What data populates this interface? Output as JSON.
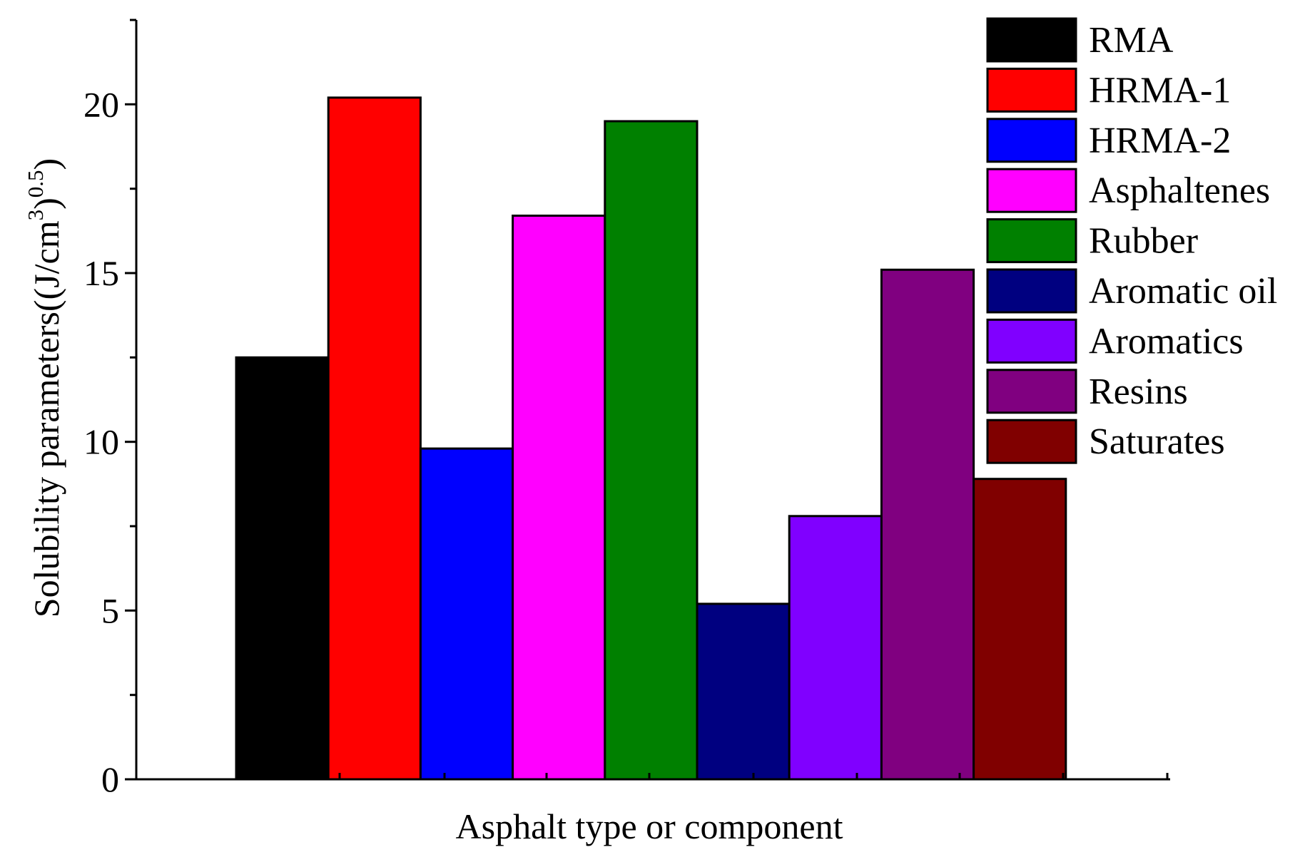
{
  "chart_data": {
    "type": "bar",
    "xlabel": "Asphalt type or component",
    "ylabel": {
      "prefix": "Solubility parameters((J/cm",
      "sup1": "3",
      "mid": ")",
      "sup2": "0.5",
      "suffix": ")"
    },
    "ylim": [
      0,
      22.5
    ],
    "yticks": [
      "0",
      "5",
      "10",
      "15",
      "20"
    ],
    "ytick_values": [
      0,
      5,
      10,
      15,
      20
    ],
    "minor_step": 2.5,
    "grid": false,
    "legend_placement": "top-right",
    "series": [
      {
        "name": "RMA",
        "value": 12.5,
        "color": "#000000"
      },
      {
        "name": "HRMA-1",
        "value": 20.2,
        "color": "#ff0000"
      },
      {
        "name": "HRMA-2",
        "value": 9.8,
        "color": "#0000ff"
      },
      {
        "name": "Asphaltenes",
        "value": 16.7,
        "color": "#ff00ff"
      },
      {
        "name": "Rubber",
        "value": 19.5,
        "color": "#008000"
      },
      {
        "name": "Aromatic oil",
        "value": 5.2,
        "color": "#000080"
      },
      {
        "name": "Aromatics",
        "value": 7.8,
        "color": "#8000ff"
      },
      {
        "name": "Resins",
        "value": 15.1,
        "color": "#800080"
      },
      {
        "name": "Saturates",
        "value": 8.9,
        "color": "#800000"
      }
    ]
  }
}
